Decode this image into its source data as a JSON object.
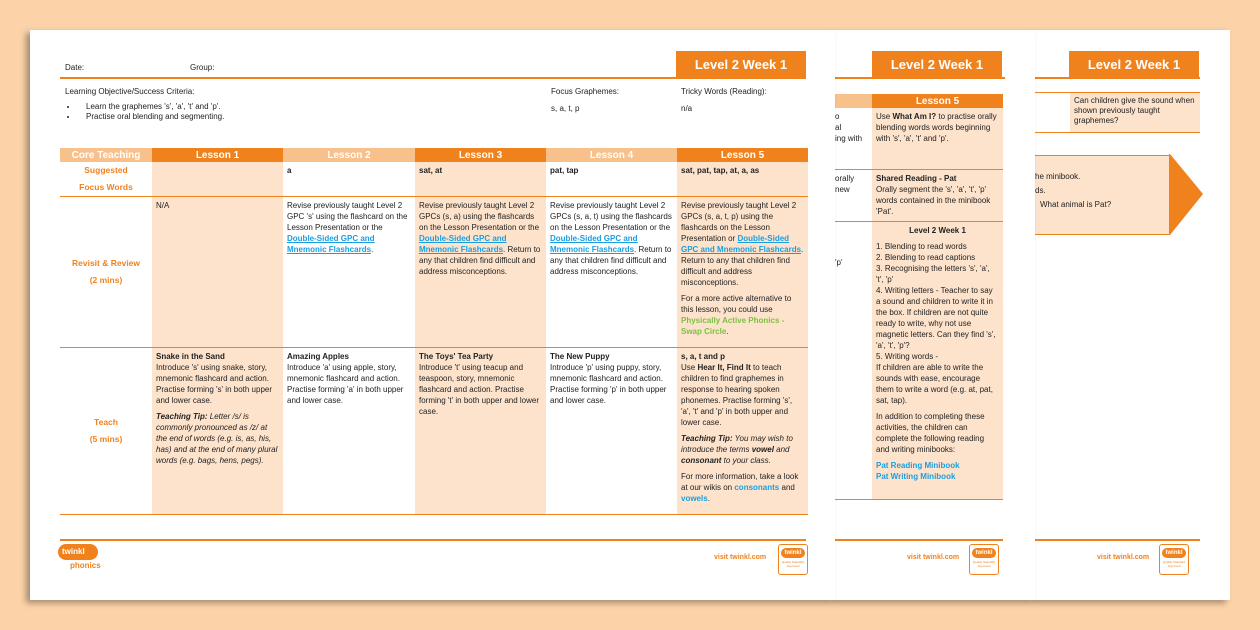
{
  "colors": {
    "accent": "#f0821e",
    "light_accent": "#f8c18c",
    "cell_shade": "#fde3cc",
    "background": "#fcd3a8",
    "link": "#1a9ee0",
    "green_link": "#7dc142"
  },
  "level_title": "Level 2 Week 1",
  "footer": {
    "visit": "visit twinkl.com",
    "logo": "twinkl phonics",
    "badge": "twinkl Quality Standard Approved"
  },
  "page1": {
    "date_label": "Date:",
    "group_label": "Group:",
    "objective_heading": "Learning Objective/Success Criteria:",
    "objectives": [
      "Learn the graphemes 's', 'a', 't' and 'p'.",
      "Practise oral blending and segmenting."
    ],
    "focus_heading": "Focus Graphemes:",
    "focus_value": "s, a, t, p",
    "tricky_heading": "Tricky Words (Reading):",
    "tricky_value": "n/a",
    "table": {
      "headers": [
        "Core Teaching",
        "Lesson 1",
        "Lesson 2",
        "Lesson 3",
        "Lesson 4",
        "Lesson 5"
      ],
      "row_labels": [
        [
          "Suggested",
          "Focus Words"
        ],
        [
          "Revisit & Review",
          "(2 mins)"
        ],
        [
          "Teach",
          "(5 mins)"
        ]
      ],
      "rows": [
        [
          [],
          [
            [
              {
                "t": "a",
                "s": "b"
              }
            ]
          ],
          [
            [
              {
                "t": "sat, at",
                "s": "b"
              }
            ]
          ],
          [
            [
              {
                "t": "pat, tap",
                "s": "b"
              }
            ]
          ],
          [
            [
              {
                "t": "sat, pat, tap, at, a, as",
                "s": "b"
              }
            ]
          ]
        ],
        [
          [
            [
              {
                "t": "N/A"
              }
            ]
          ],
          [
            [
              {
                "t": "Revise previously taught Level 2 GPC 's' using the flashcard on the Lesson Presentation or the "
              },
              {
                "t": "Double-Sided GPC and Mnemonic Flashcards",
                "s": "lk"
              },
              {
                "t": "."
              }
            ]
          ],
          [
            [
              {
                "t": "Revise previously taught Level 2 GPCs (s, a) using the flashcards on the Lesson Presentation or the "
              },
              {
                "t": "Double-Sided GPC and Mnemonic Flashcards",
                "s": "lk"
              },
              {
                "t": ". Return to any that children find difficult and address misconceptions."
              }
            ]
          ],
          [
            [
              {
                "t": "Revise previously taught Level 2 GPCs (s, a, t) using the flashcards on the Lesson Presentation or the "
              },
              {
                "t": "Double-Sided GPC and Mnemonic Flashcards",
                "s": "lk"
              },
              {
                "t": ". Return to any that children find difficult and address misconceptions."
              }
            ]
          ],
          [
            [
              {
                "t": "Revise previously taught Level 2 GPCs (s, a, t, p) using the flashcards on the Lesson Presentation or "
              },
              {
                "t": "Double-Sided GPC and Mnemonic Flashcards",
                "s": "lk"
              },
              {
                "t": ". Return to any that children find difficult and address misconceptions."
              }
            ],
            [
              {
                "t": "For a more active alternative to this lesson, you could use "
              },
              {
                "t": "Physically Active Phonics - Swap Circle",
                "s": "gr"
              },
              {
                "t": "."
              }
            ]
          ]
        ],
        [
          [
            [
              {
                "t": "Snake in the Sand",
                "s": "b",
                "br": true
              },
              {
                "t": "Introduce 's' using snake, story, mnemonic flashcard and action. Practise forming 's' in both upper and lower case."
              }
            ],
            [
              {
                "t": "Teaching Tip:",
                "s": "bi"
              },
              {
                "t": " Letter /s/ is commonly pronounced as /z/ at the end of words (e.g. is, as, his, has) and at the end of many plural words (e.g. bags, hens, pegs).",
                "s": "i"
              }
            ]
          ],
          [
            [
              {
                "t": "Amazing Apples",
                "s": "b",
                "br": true
              },
              {
                "t": "Introduce 'a' using apple, story, mnemonic flashcard and action. Practise forming 'a' in both upper and lower case."
              }
            ]
          ],
          [
            [
              {
                "t": "The Toys' Tea Party",
                "s": "b",
                "br": true
              },
              {
                "t": "Introduce 't' using teacup and teaspoon, story, mnemonic flashcard and action. Practise forming 't' in both upper and lower case."
              }
            ]
          ],
          [
            [
              {
                "t": "The New Puppy",
                "s": "b",
                "br": true
              },
              {
                "t": "Introduce 'p' using puppy, story, mnemonic flashcard and action. Practise forming 'p' in both upper and lower case."
              }
            ]
          ],
          [
            [
              {
                "t": "s, a, t and p",
                "s": "b",
                "br": true
              },
              {
                "t": "Use "
              },
              {
                "t": "Hear It, Find It",
                "s": "b"
              },
              {
                "t": " to teach children to find graphemes in response to hearing spoken phonemes. Practise forming 's', 'a', 't' and 'p' in both upper and lower case."
              }
            ],
            [
              {
                "t": "Teaching Tip:",
                "s": "bi"
              },
              {
                "t": " You may wish to introduce the terms ",
                "s": "i"
              },
              {
                "t": "vowel",
                "s": "bi"
              },
              {
                "t": " and ",
                "s": "i"
              },
              {
                "t": "consonant",
                "s": "bi"
              },
              {
                "t": " to your class.",
                "s": "i"
              }
            ],
            [
              {
                "t": "For more information, take a look at our wikis on "
              },
              {
                "t": "consonants",
                "s": "lk2"
              },
              {
                "t": " and "
              },
              {
                "t": "vowels",
                "s": "lk2"
              },
              {
                "t": "."
              }
            ]
          ]
        ]
      ]
    }
  },
  "page2": {
    "header": "Lesson 5",
    "left_fragments": [
      [
        "o",
        "al",
        "ing with"
      ],
      [
        "orally",
        "new"
      ],
      [
        "'p'"
      ]
    ],
    "cells": [
      [
        [
          {
            "t": "Use "
          },
          {
            "t": "What Am I?",
            "s": "b"
          },
          {
            "t": " to practise orally blending words words beginning with 's', 'a', 't' and 'p'."
          }
        ]
      ],
      [
        [
          {
            "t": "Shared Reading - Pat",
            "s": "b",
            "br": true
          },
          {
            "t": "Orally segment the 's', 'a', 't', 'p' words contained in the minibook 'Pat'."
          }
        ]
      ],
      [
        [
          {
            "t": "Level 2 Week 1",
            "s": "b"
          }
        ],
        [
          {
            "t": "1. Blending to read words",
            "br": true
          },
          {
            "t": "2. Blending to read captions",
            "br": true
          },
          {
            "t": "3. Recognising the letters 's', 'a', 't', 'p'",
            "br": true
          },
          {
            "t": "4. Writing letters - Teacher to say a sound and children to write it in the box. If children are not quite ready to write, why not use magnetic letters. Can they find 's', 'a', 't', 'p'?",
            "br": true
          },
          {
            "t": "5. Writing words -",
            "br": true
          },
          {
            "t": "If children are able to write the sounds with ease, encourage them to write a word (e.g. at, pat, sat, tap)."
          }
        ],
        [
          {
            "t": "In addition to completing these activities, the children can complete the following reading and writing minibooks:"
          }
        ],
        [
          {
            "t": "Pat Reading Minibook",
            "s": "lk2",
            "br": true
          },
          {
            "t": "Pat Writing Minibook",
            "s": "lk2"
          }
        ]
      ]
    ]
  },
  "page3": {
    "question": "Can children give the sound when shown previously taught graphemes?",
    "arrow_lines": [
      "he minibook.",
      "ds.",
      "What animal is Pat?"
    ]
  }
}
